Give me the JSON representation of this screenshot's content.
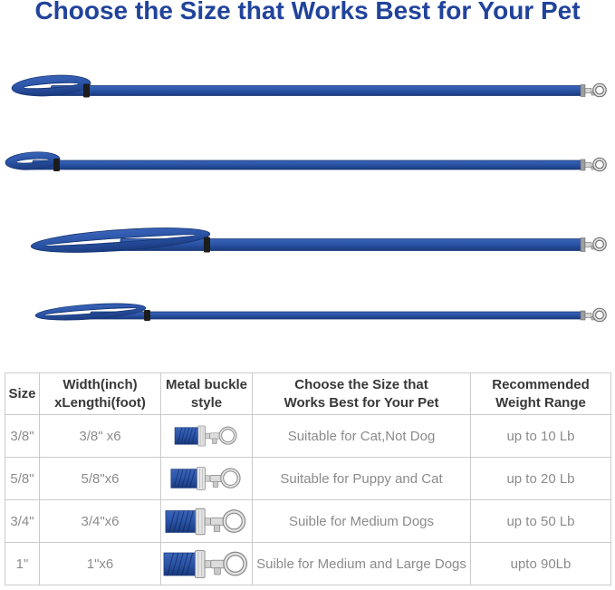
{
  "title": "Choose the Size that Works Best for Your Pet",
  "colors": {
    "title_blue": "#21439b",
    "leash_blue": "#2b54a7",
    "leash_blue_dark": "#1a3a7e",
    "leash_blue_light": "#3a64b8",
    "metal_gray": "#c9c9c9",
    "table_border": "#cbcbcb",
    "header_text": "#383838",
    "cell_text": "#8b8b8b"
  },
  "leashes": [
    {
      "name": "leash-illustration-3-8-inch"
    },
    {
      "name": "leash-illustration-5-8-inch"
    },
    {
      "name": "leash-illustration-3-4-inch"
    },
    {
      "name": "leash-illustration-1-inch"
    }
  ],
  "table": {
    "headers": [
      "Size",
      "Width(inch) xLengthi(foot)",
      "Metal buckle style",
      "Choose the Size that Works Best for Your Pet",
      "Recommended Weight Range"
    ],
    "rows": [
      {
        "size": "3/8\"",
        "dimensions": "3/8\" x6",
        "buckle_icon": "snap-hook-buckle-icon",
        "suitability": "Suitable for Cat,Not Dog",
        "weight": "up to 10 Lb"
      },
      {
        "size": "5/8\"",
        "dimensions": "5/8\"x6",
        "buckle_icon": "snap-hook-buckle-icon",
        "suitability": "Suitable for Puppy and Cat",
        "weight": "up to 20 Lb"
      },
      {
        "size": "3/4\"",
        "dimensions": "3/4\"x6",
        "buckle_icon": "snap-hook-buckle-icon",
        "suitability": "Suible for Medium Dogs",
        "weight": "up to 50 Lb"
      },
      {
        "size": "1\"",
        "dimensions": "1\"x6",
        "buckle_icon": "snap-hook-buckle-icon",
        "suitability": "Suible for Medium and Large Dogs",
        "weight": "upto 90Lb"
      }
    ]
  }
}
